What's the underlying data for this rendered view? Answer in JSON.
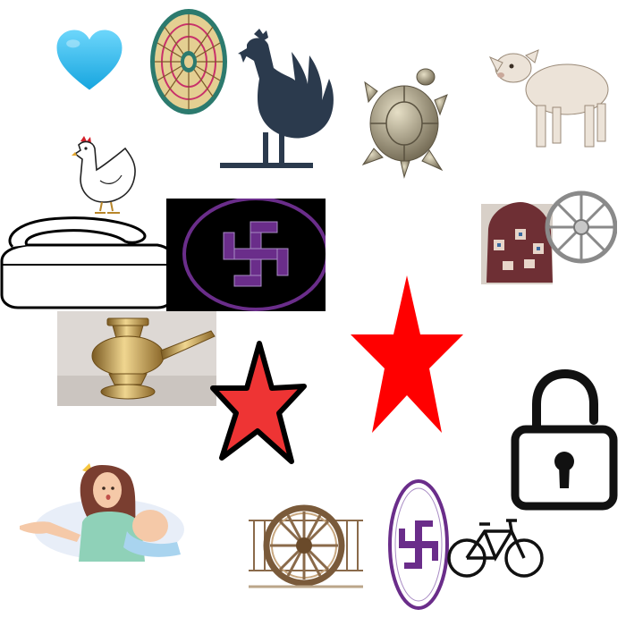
{
  "canvas": {
    "background": "#ffffff"
  },
  "items": {
    "heart": {
      "icon": "blue-heart-icon",
      "color": "#33c0f0"
    },
    "basket": {
      "icon": "woven-basket-icon",
      "colors": [
        "#2c7a6e",
        "#e0c98a",
        "#c8306a"
      ]
    },
    "rooster": {
      "icon": "rooster-silhouette-icon",
      "color": "#2b3a4d"
    },
    "turtle": {
      "icon": "metal-turtle-icon",
      "color": "#a89f86"
    },
    "lamb": {
      "icon": "lamb-icon",
      "color": "#ece3d8"
    },
    "hen": {
      "icon": "hen-icon",
      "color": "#ffffff"
    },
    "grinding_stone": {
      "icon": "grinding-stone-icon",
      "color": "#ffffff"
    },
    "swastika_large": {
      "icon": "swastika-emblem-icon",
      "color": "#6a2d8a"
    },
    "cap_wheel": {
      "icon": "embroidered-cap-and-wheel-icon",
      "colors": [
        "#7a3a3a",
        "#c8c8c8"
      ]
    },
    "brass_pot": {
      "icon": "brass-kindi-pot-icon",
      "color": "#b8903c"
    },
    "red_star_left": {
      "icon": "red-star-outlined-icon",
      "color": "#ee3434"
    },
    "red_star_right": {
      "icon": "red-star-icon",
      "color": "#ff0000"
    },
    "padlock": {
      "icon": "unlocked-padlock-icon",
      "color": "#111111"
    },
    "mother_child": {
      "icon": "mother-with-baby-icon",
      "colors": [
        "#f5c9a8",
        "#8fd1b8",
        "#a9d4ef"
      ]
    },
    "cart_wheel": {
      "icon": "bullock-cart-wheel-icon",
      "color": "#8a6a4a"
    },
    "swastika_oval": {
      "icon": "swastika-oval-emblem-icon",
      "color": "#6a2d8a"
    },
    "bicycle": {
      "icon": "bicycle-icon",
      "color": "#111111"
    }
  }
}
